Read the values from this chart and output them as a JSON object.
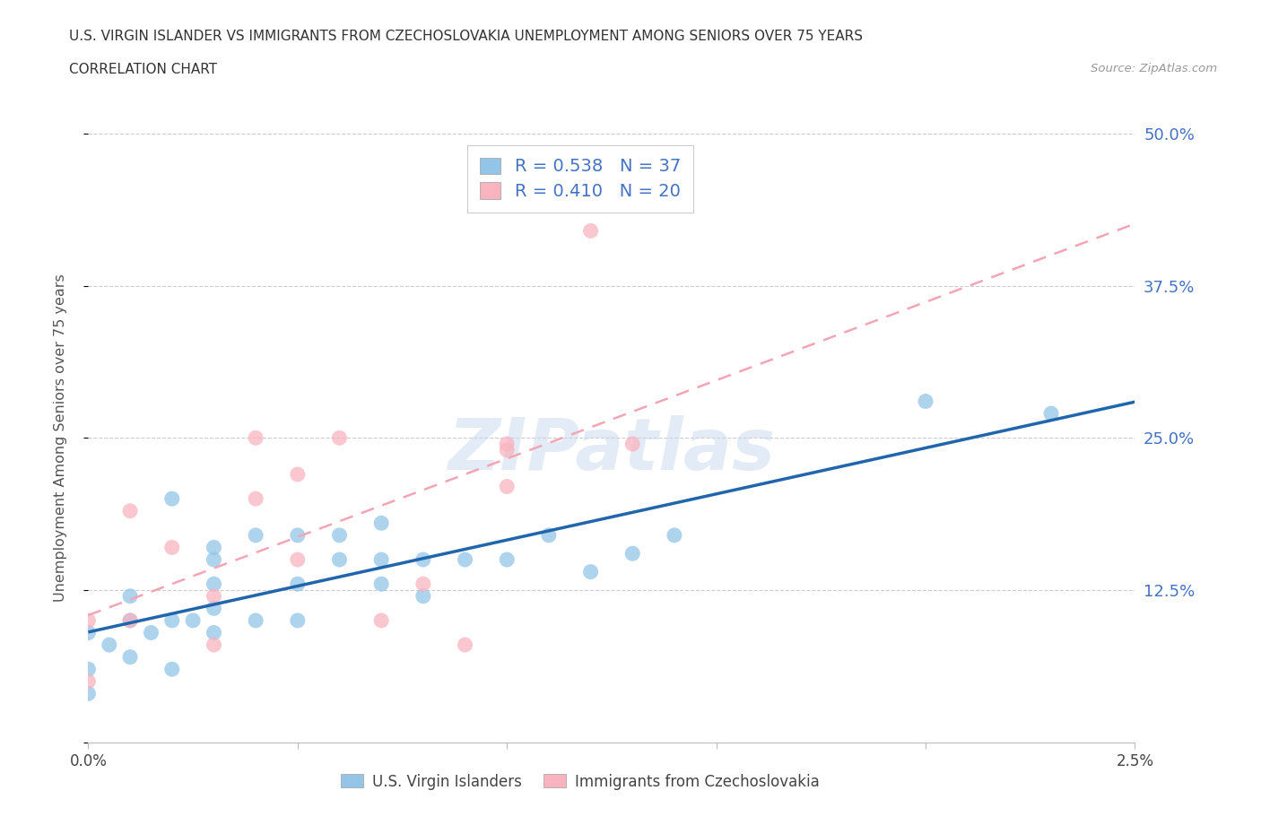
{
  "title_line1": "U.S. VIRGIN ISLANDER VS IMMIGRANTS FROM CZECHOSLOVAKIA UNEMPLOYMENT AMONG SENIORS OVER 75 YEARS",
  "title_line2": "CORRELATION CHART",
  "source": "Source: ZipAtlas.com",
  "ylabel": "Unemployment Among Seniors over 75 years",
  "xlim": [
    0.0,
    0.025
  ],
  "ylim": [
    0.0,
    0.5
  ],
  "yticks": [
    0.0,
    0.125,
    0.25,
    0.375,
    0.5
  ],
  "ytick_labels": [
    "",
    "12.5%",
    "25.0%",
    "37.5%",
    "50.0%"
  ],
  "xticks": [
    0.0,
    0.005,
    0.01,
    0.015,
    0.02,
    0.025
  ],
  "xtick_labels": [
    "0.0%",
    "",
    "",
    "",
    "",
    "2.5%"
  ],
  "r_vi": 0.538,
  "n_vi": 37,
  "r_cz": 0.41,
  "n_cz": 20,
  "color_vi": "#92c5e8",
  "color_cz": "#f9b4c0",
  "color_vi_line": "#2166ac",
  "color_cz_line": "#f4a5b5",
  "color_text_blue": "#4472c4",
  "watermark": "ZIPatlas",
  "vi_x": [
    0.0,
    0.0,
    0.0,
    0.0005,
    0.001,
    0.001,
    0.001,
    0.0015,
    0.002,
    0.002,
    0.002,
    0.0025,
    0.003,
    0.003,
    0.003,
    0.003,
    0.003,
    0.004,
    0.004,
    0.005,
    0.005,
    0.005,
    0.006,
    0.006,
    0.007,
    0.007,
    0.007,
    0.008,
    0.008,
    0.009,
    0.01,
    0.011,
    0.012,
    0.013,
    0.014,
    0.02,
    0.023
  ],
  "vi_y": [
    0.04,
    0.06,
    0.09,
    0.08,
    0.07,
    0.1,
    0.12,
    0.09,
    0.06,
    0.1,
    0.2,
    0.1,
    0.09,
    0.11,
    0.13,
    0.15,
    0.16,
    0.1,
    0.17,
    0.1,
    0.13,
    0.17,
    0.15,
    0.17,
    0.13,
    0.15,
    0.18,
    0.12,
    0.15,
    0.15,
    0.15,
    0.17,
    0.14,
    0.155,
    0.17,
    0.28,
    0.27
  ],
  "cz_x": [
    0.0,
    0.0,
    0.001,
    0.001,
    0.002,
    0.003,
    0.003,
    0.004,
    0.004,
    0.005,
    0.005,
    0.006,
    0.007,
    0.008,
    0.009,
    0.01,
    0.01,
    0.01,
    0.012,
    0.013
  ],
  "cz_y": [
    0.05,
    0.1,
    0.1,
    0.19,
    0.16,
    0.08,
    0.12,
    0.2,
    0.25,
    0.15,
    0.22,
    0.25,
    0.1,
    0.13,
    0.08,
    0.24,
    0.21,
    0.245,
    0.42,
    0.245
  ]
}
